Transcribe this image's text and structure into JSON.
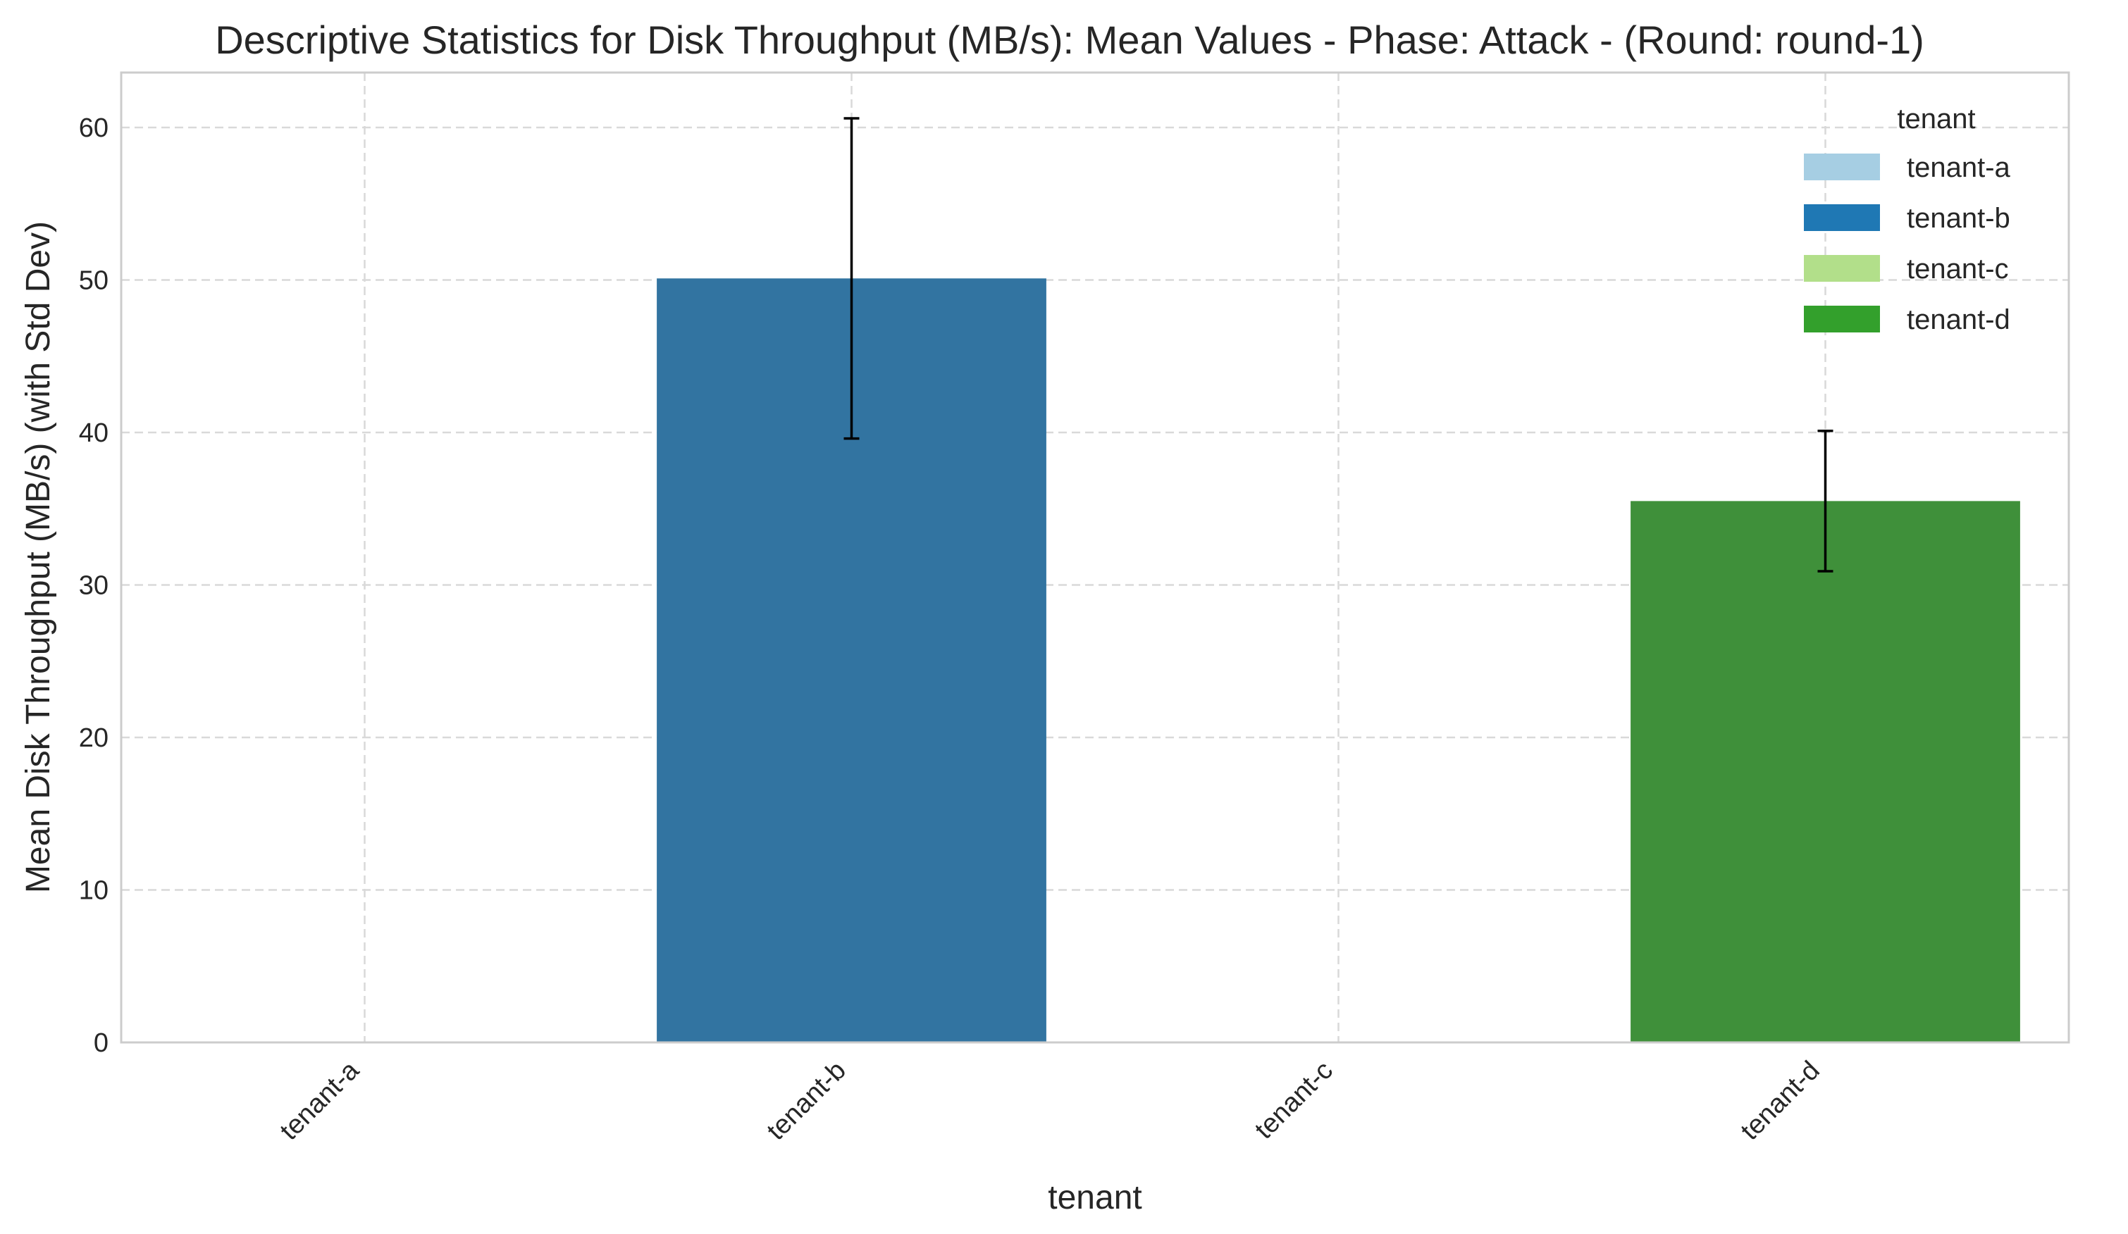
{
  "chart_data": {
    "type": "bar",
    "title": "Descriptive Statistics for Disk Throughput (MB/s): Mean Values - Phase: Attack - (Round: round-1)",
    "xlabel": "tenant",
    "ylabel": "Mean Disk Throughput (MB/s) (with Std Dev)",
    "categories": [
      "tenant-a",
      "tenant-b",
      "tenant-c",
      "tenant-d"
    ],
    "values": [
      0,
      50.1,
      0,
      35.5
    ],
    "std": [
      0,
      10.5,
      0,
      4.6
    ],
    "colors": [
      "#a6cee3",
      "#3274a1",
      "#b2df8a",
      "#3f903a"
    ],
    "ylim": [
      0,
      63.6
    ],
    "yticks": [
      0,
      10,
      20,
      30,
      40,
      50,
      60
    ],
    "grid": true,
    "legend": {
      "title": "tenant",
      "position": "top-right",
      "entries": [
        {
          "label": "tenant-a",
          "color": "#a6cee3"
        },
        {
          "label": "tenant-b",
          "color": "#1f78b4"
        },
        {
          "label": "tenant-c",
          "color": "#b2df8a"
        },
        {
          "label": "tenant-d",
          "color": "#33a02c"
        }
      ]
    }
  }
}
